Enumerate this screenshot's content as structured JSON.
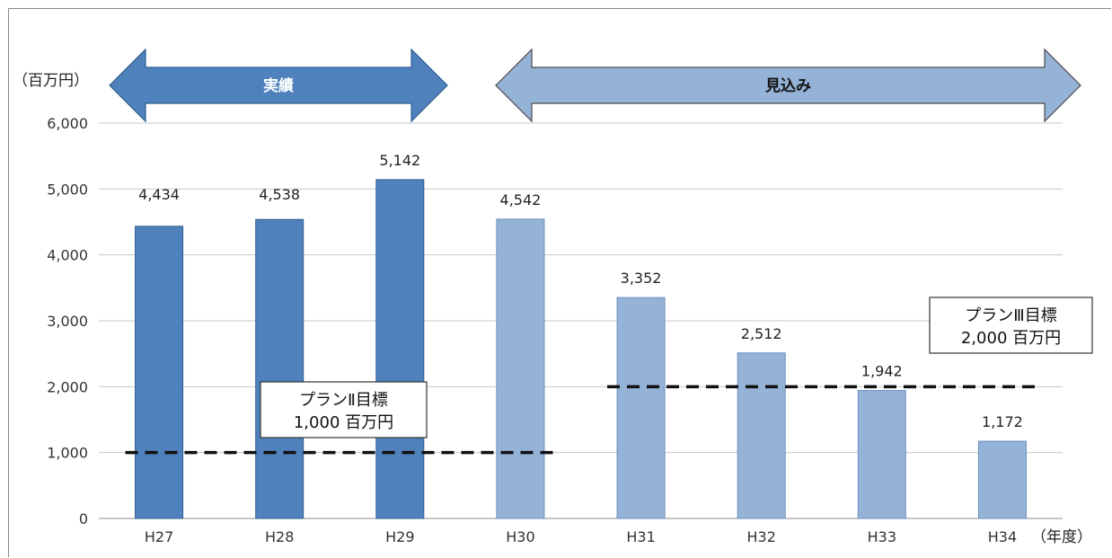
{
  "chart_data": {
    "type": "bar",
    "categories": [
      "H27",
      "H28",
      "H29",
      "H30",
      "H31",
      "H32",
      "H33",
      "H34"
    ],
    "values": [
      4434,
      4538,
      5142,
      4542,
      3352,
      2512,
      1942,
      1172
    ],
    "value_labels": [
      "4,434",
      "4,538",
      "5,142",
      "4,542",
      "3,352",
      "2,512",
      "1,942",
      "1,172"
    ],
    "bar_groups": [
      "actual",
      "actual",
      "actual",
      "forecast",
      "forecast",
      "forecast",
      "forecast",
      "forecast"
    ],
    "colors": {
      "actual": "#4f81bd",
      "forecast": "#95b3d7",
      "actual_edge": "#2f5f8f",
      "forecast_edge": "#6a8fbf"
    },
    "ylim": [
      0,
      6000
    ],
    "yticks": [
      0,
      1000,
      2000,
      3000,
      4000,
      5000,
      6000
    ],
    "ytick_labels": [
      "0",
      "1,000",
      "2,000",
      "3,000",
      "4,000",
      "5,000",
      "6,000"
    ],
    "ylabel": "（百万円）",
    "xlabel": "（年度）",
    "grid": true,
    "phase_arrows": [
      {
        "label": "実績",
        "from": "H27",
        "to": "H29"
      },
      {
        "label": "見込み",
        "from": "H30",
        "to": "H34"
      }
    ],
    "targets": [
      {
        "value": 1000,
        "from": "H27",
        "to": "H30",
        "line1": "プランⅡ目標",
        "line2": "1,000 百万円"
      },
      {
        "value": 2000,
        "from": "H31",
        "to": "H34",
        "line1": "プランⅢ目標",
        "line2": "2,000 百万円"
      }
    ]
  }
}
